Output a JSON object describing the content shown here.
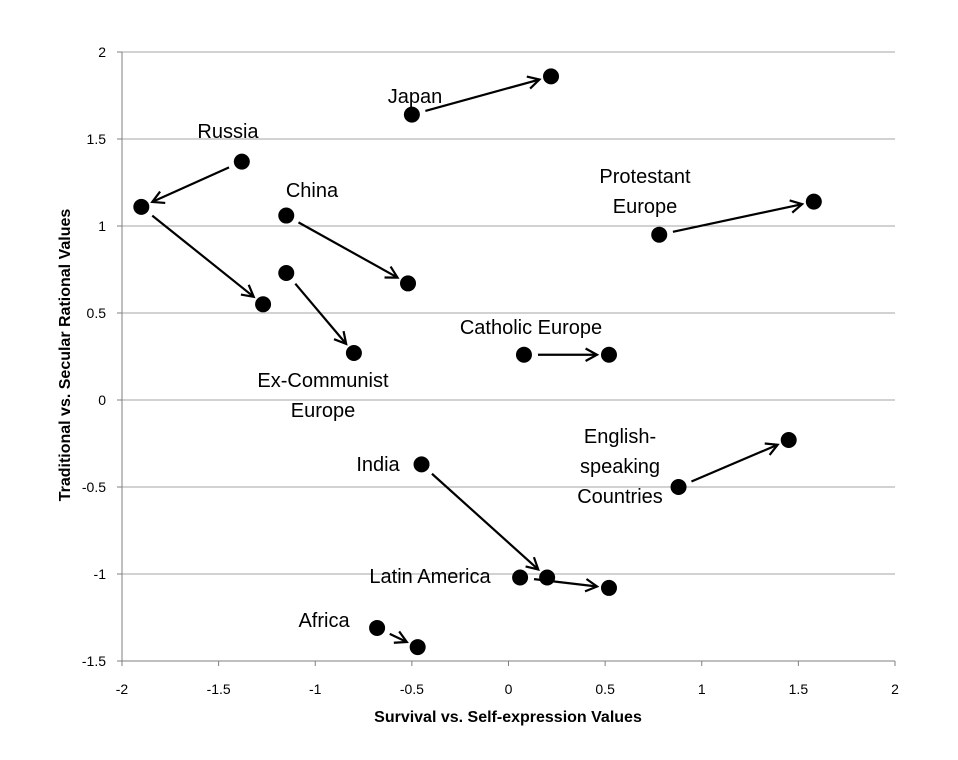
{
  "chart_data": {
    "type": "scatter",
    "xlabel": "Survival vs. Self-expression Values",
    "ylabel": "Traditional vs. Secular Rational Values",
    "xlim": [
      -2,
      2
    ],
    "ylim": [
      -1.5,
      2
    ],
    "x_ticks": [
      "-2",
      "-1.5",
      "-1",
      "-0.5",
      "0",
      "0.5",
      "1",
      "1.5",
      "2"
    ],
    "y_ticks": [
      "2",
      "1.5",
      "1",
      "0.5",
      "0",
      "-0.5",
      "-1",
      "-1.5"
    ],
    "horizontal_grid": true,
    "point_color": "#000000",
    "arrow_color": "#000000",
    "series": [
      {
        "label_lines": [
          "Japan"
        ],
        "points": [
          [
            -0.5,
            1.64
          ],
          [
            0.22,
            1.86
          ]
        ]
      },
      {
        "label_lines": [
          "Russia"
        ],
        "points": [
          [
            -1.38,
            1.37
          ],
          [
            -1.9,
            1.11
          ],
          [
            -1.27,
            0.55
          ]
        ]
      },
      {
        "label_lines": [
          "China"
        ],
        "points": [
          [
            -1.15,
            1.06
          ],
          [
            -0.52,
            0.67
          ]
        ]
      },
      {
        "label_lines": [
          "Ex-Communist",
          "Europe"
        ],
        "points": [
          [
            -1.15,
            0.73
          ],
          [
            -0.8,
            0.27
          ]
        ]
      },
      {
        "label_lines": [
          "Protestant",
          "Europe"
        ],
        "points": [
          [
            0.78,
            0.95
          ],
          [
            1.58,
            1.14
          ]
        ]
      },
      {
        "label_lines": [
          "Catholic Europe"
        ],
        "points": [
          [
            0.08,
            0.26
          ],
          [
            0.52,
            0.26
          ]
        ]
      },
      {
        "label_lines": [
          "English-",
          "speaking",
          "Countries"
        ],
        "points": [
          [
            0.88,
            -0.5
          ],
          [
            1.45,
            -0.23
          ]
        ]
      },
      {
        "label_lines": [
          "India"
        ],
        "points": [
          [
            -0.45,
            -0.37
          ],
          [
            0.2,
            -1.02
          ]
        ]
      },
      {
        "label_lines": [
          "Latin America"
        ],
        "points": [
          [
            0.06,
            -1.02
          ],
          [
            0.52,
            -1.08
          ]
        ]
      },
      {
        "label_lines": [
          "Africa"
        ],
        "points": [
          [
            -0.68,
            -1.31
          ],
          [
            -0.47,
            -1.42
          ]
        ]
      }
    ]
  }
}
